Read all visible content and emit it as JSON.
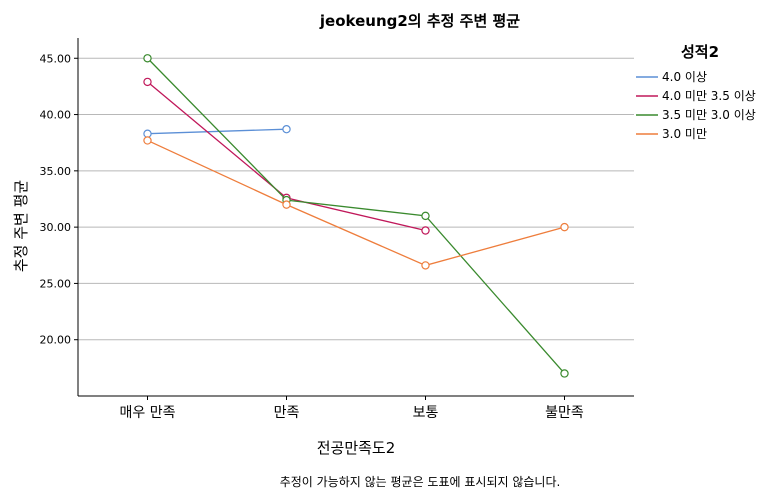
{
  "chart_data": {
    "type": "line",
    "title": "jeokeung2의 추정 주변 평균",
    "xlabel": "전공만족도2",
    "ylabel": "추정 주변 평균",
    "categories": [
      "매우 만족",
      "만족",
      "보통",
      "불만족"
    ],
    "ylim": [
      15.0,
      46.8
    ],
    "yticks": [
      "20.00",
      "25.00",
      "30.00",
      "35.00",
      "40.00",
      "45.00"
    ],
    "ytick_values": [
      20,
      25,
      30,
      35,
      40,
      45
    ],
    "grid": true,
    "legend_title": "성적2",
    "legend_position": "right",
    "series": [
      {
        "name": "4.0 이상",
        "color": "#5b8fd6",
        "values": [
          38.3,
          38.7,
          null,
          null
        ]
      },
      {
        "name": "4.0 미만 3.5 이상",
        "color": "#c0185a",
        "values": [
          42.9,
          32.6,
          29.7,
          null
        ]
      },
      {
        "name": "3.5 미만 3.0 이상",
        "color": "#3a8a2e",
        "values": [
          45.0,
          32.4,
          31.0,
          17.0
        ]
      },
      {
        "name": "3.0 미만",
        "color": "#ee7d3c",
        "values": [
          37.7,
          32.0,
          26.6,
          30.0
        ]
      }
    ],
    "footnote": "추정이 가능하지 않는 평균은 도표에 표시되지 않습니다."
  }
}
